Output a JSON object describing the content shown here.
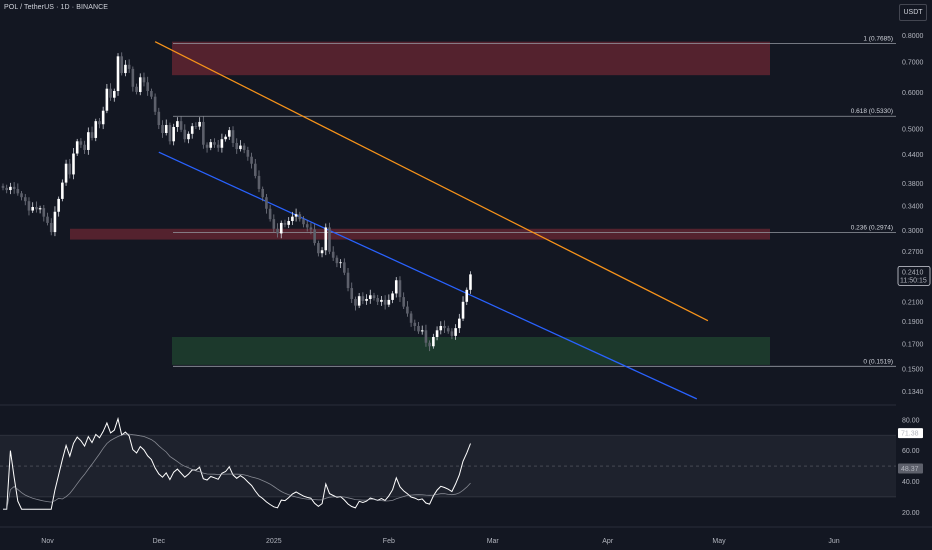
{
  "header": {
    "title": "POL / TetherUS · 1D · BINANCE"
  },
  "currency_button": {
    "label": "USDT"
  },
  "chart_data": {
    "type": "candlestick",
    "symbol": "POL / TetherUS",
    "interval": "1D",
    "exchange": "BINANCE",
    "price_axis": {
      "scale": "log",
      "ylim": [
        0.127,
        0.83
      ],
      "ticks": [
        "0.8000",
        "0.7000",
        "0.6000",
        "0.5000",
        "0.4400",
        "0.3800",
        "0.3400",
        "0.3000",
        "0.2700",
        "0.2400",
        "0.2100",
        "0.1900",
        "0.1700",
        "0.1500",
        "0.1340"
      ]
    },
    "x_axis": {
      "ticks": [
        "Nov",
        "Dec",
        "2025",
        "Feb",
        "Mar",
        "Apr",
        "May",
        "Jun"
      ]
    },
    "current_price": {
      "value": "0.2410",
      "countdown": "11:50:15",
      "color": "#ffffff"
    },
    "fib_levels": [
      {
        "label": "1 (0.7685)",
        "value": 0.7685
      },
      {
        "label": "0.618 (0.5330)",
        "value": 0.533
      },
      {
        "label": "0.236 (0.2974)",
        "value": 0.2974
      },
      {
        "label": "0 (0.1519)",
        "value": 0.1519
      }
    ],
    "zones": [
      {
        "name": "resistance-zone-top",
        "from": 0.655,
        "to": 0.775,
        "color": "#5c2430"
      },
      {
        "name": "resistance-zone-mid",
        "from": 0.287,
        "to": 0.303,
        "color": "#5c2430"
      },
      {
        "name": "support-zone",
        "from": 0.153,
        "to": 0.176,
        "color": "#1e3d2e"
      }
    ],
    "trendlines": [
      {
        "name": "orange-downtrend",
        "color": "#f7931a",
        "from": [
          "2024-11-30",
          0.775
        ],
        "to": [
          "2025-04-28",
          0.191
        ]
      },
      {
        "name": "blue-channel-bottom",
        "color": "#2962ff",
        "from": [
          "2024-12-01",
          0.445
        ],
        "to": [
          "2025-04-25",
          0.129
        ]
      }
    ],
    "closes": [
      0.372,
      0.368,
      0.374,
      0.37,
      0.362,
      0.355,
      0.348,
      0.332,
      0.338,
      0.334,
      0.336,
      0.322,
      0.312,
      0.298,
      0.33,
      0.352,
      0.382,
      0.42,
      0.398,
      0.442,
      0.47,
      0.462,
      0.45,
      0.492,
      0.478,
      0.52,
      0.512,
      0.548,
      0.612,
      0.585,
      0.605,
      0.72,
      0.662,
      0.69,
      0.676,
      0.618,
      0.602,
      0.648,
      0.632,
      0.605,
      0.588,
      0.545,
      0.51,
      0.49,
      0.51,
      0.47,
      0.505,
      0.52,
      0.498,
      0.475,
      0.488,
      0.507,
      0.506,
      0.518,
      0.462,
      0.455,
      0.468,
      0.462,
      0.455,
      0.475,
      0.481,
      0.497,
      0.466,
      0.452,
      0.46,
      0.45,
      0.435,
      0.42,
      0.395,
      0.37,
      0.355,
      0.335,
      0.318,
      0.303,
      0.296,
      0.312,
      0.309,
      0.315,
      0.322,
      0.326,
      0.318,
      0.31,
      0.305,
      0.302,
      0.282,
      0.268,
      0.272,
      0.305,
      0.27,
      0.262,
      0.255,
      0.256,
      0.243,
      0.225,
      0.213,
      0.206,
      0.216,
      0.211,
      0.213,
      0.217,
      0.214,
      0.21,
      0.212,
      0.207,
      0.212,
      0.219,
      0.234,
      0.215,
      0.205,
      0.198,
      0.189,
      0.186,
      0.181,
      0.182,
      0.171,
      0.168,
      0.176,
      0.182,
      0.186,
      0.184,
      0.181,
      0.177,
      0.184,
      0.193,
      0.21,
      0.223,
      0.241
    ],
    "rsi": {
      "ylim": [
        15,
        87
      ],
      "ticks": [
        "80.00",
        "60.00",
        "40.00",
        "20.00"
      ],
      "value": "71.38",
      "ma_value": "48.37",
      "band": [
        30,
        70
      ],
      "mid": 50,
      "line_color": "#ffffff",
      "ma_color": "#b2b5be"
    }
  }
}
